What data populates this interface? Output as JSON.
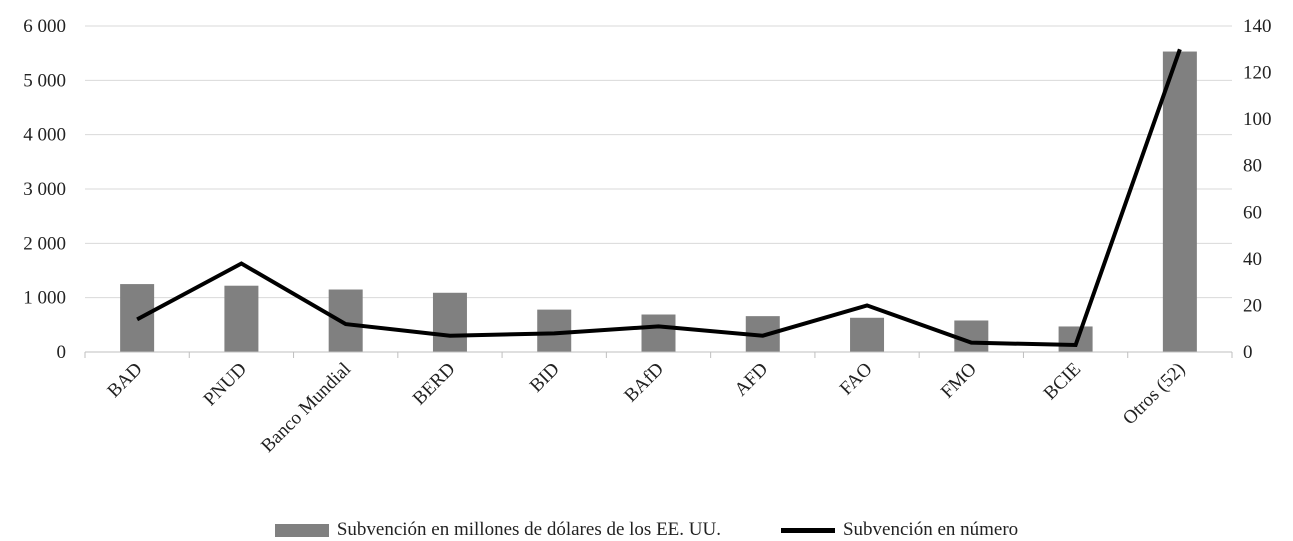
{
  "chart_data": {
    "type": "bar",
    "categories": [
      "BAD",
      "PNUD",
      "Banco Mundial",
      "BERD",
      "BID",
      "BAfD",
      "AFD",
      "FAO",
      "FMO",
      "BCIE",
      "Otros (52)"
    ],
    "series": [
      {
        "name": "Subvención en millones de dólares de los EE. UU.",
        "type": "bar",
        "axis": "left",
        "color": "#808080",
        "values": [
          1250,
          1220,
          1150,
          1090,
          780,
          690,
          660,
          630,
          580,
          470,
          5530
        ]
      },
      {
        "name": "Subvención en número",
        "type": "line",
        "axis": "right",
        "color": "#000000",
        "values": [
          14,
          38,
          12,
          7,
          8,
          11,
          7,
          20,
          4,
          3,
          130
        ]
      }
    ],
    "y_left": {
      "ylim": [
        0,
        6000
      ],
      "ticks": [
        "0",
        "1 000",
        "2 000",
        "3 000",
        "4 000",
        "5 000",
        "6 000"
      ]
    },
    "y_right": {
      "ylim": [
        0,
        140
      ],
      "ticks": [
        "0",
        "20",
        "40",
        "60",
        "80",
        "100",
        "120",
        "140"
      ]
    },
    "grid": true,
    "legend_position": "bottom"
  }
}
